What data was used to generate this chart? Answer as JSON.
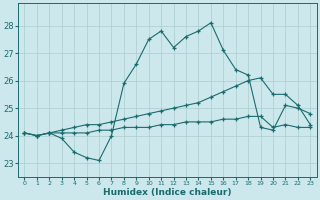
{
  "xlabel": "Humidex (Indice chaleur)",
  "ylabel": "",
  "bg_color": "#cde8ec",
  "grid_color": "#aacccc",
  "line_color": "#1a6b6e",
  "xlim": [
    -0.5,
    23.5
  ],
  "ylim": [
    22.5,
    28.8
  ],
  "yticks": [
    23,
    24,
    25,
    26,
    27,
    28
  ],
  "xticks": [
    0,
    1,
    2,
    3,
    4,
    5,
    6,
    7,
    8,
    9,
    10,
    11,
    12,
    13,
    14,
    15,
    16,
    17,
    18,
    19,
    20,
    21,
    22,
    23
  ],
  "line1_x": [
    0,
    1,
    2,
    3,
    4,
    5,
    6,
    7,
    8,
    9,
    10,
    11,
    12,
    13,
    14,
    15,
    16,
    17,
    18,
    19,
    20,
    21,
    22,
    23
  ],
  "line1_y": [
    24.1,
    24.0,
    24.1,
    23.9,
    23.4,
    23.2,
    23.1,
    24.0,
    25.9,
    26.6,
    27.5,
    27.8,
    27.2,
    27.6,
    27.8,
    28.1,
    27.1,
    26.4,
    26.2,
    24.3,
    24.2,
    25.1,
    25.0,
    24.8
  ],
  "line2_x": [
    0,
    1,
    2,
    3,
    4,
    5,
    6,
    7,
    8,
    9,
    10,
    11,
    12,
    13,
    14,
    15,
    16,
    17,
    18,
    19,
    20,
    21,
    22,
    23
  ],
  "line2_y": [
    24.1,
    24.0,
    24.1,
    24.2,
    24.3,
    24.4,
    24.4,
    24.5,
    24.6,
    24.7,
    24.8,
    24.9,
    25.0,
    25.1,
    25.2,
    25.4,
    25.6,
    25.8,
    26.0,
    26.1,
    25.5,
    25.5,
    25.1,
    24.4
  ],
  "line3_x": [
    0,
    1,
    2,
    3,
    4,
    5,
    6,
    7,
    8,
    9,
    10,
    11,
    12,
    13,
    14,
    15,
    16,
    17,
    18,
    19,
    20,
    21,
    22,
    23
  ],
  "line3_y": [
    24.1,
    24.0,
    24.1,
    24.1,
    24.1,
    24.1,
    24.2,
    24.2,
    24.3,
    24.3,
    24.3,
    24.4,
    24.4,
    24.5,
    24.5,
    24.5,
    24.6,
    24.6,
    24.7,
    24.7,
    24.3,
    24.4,
    24.3,
    24.3
  ]
}
